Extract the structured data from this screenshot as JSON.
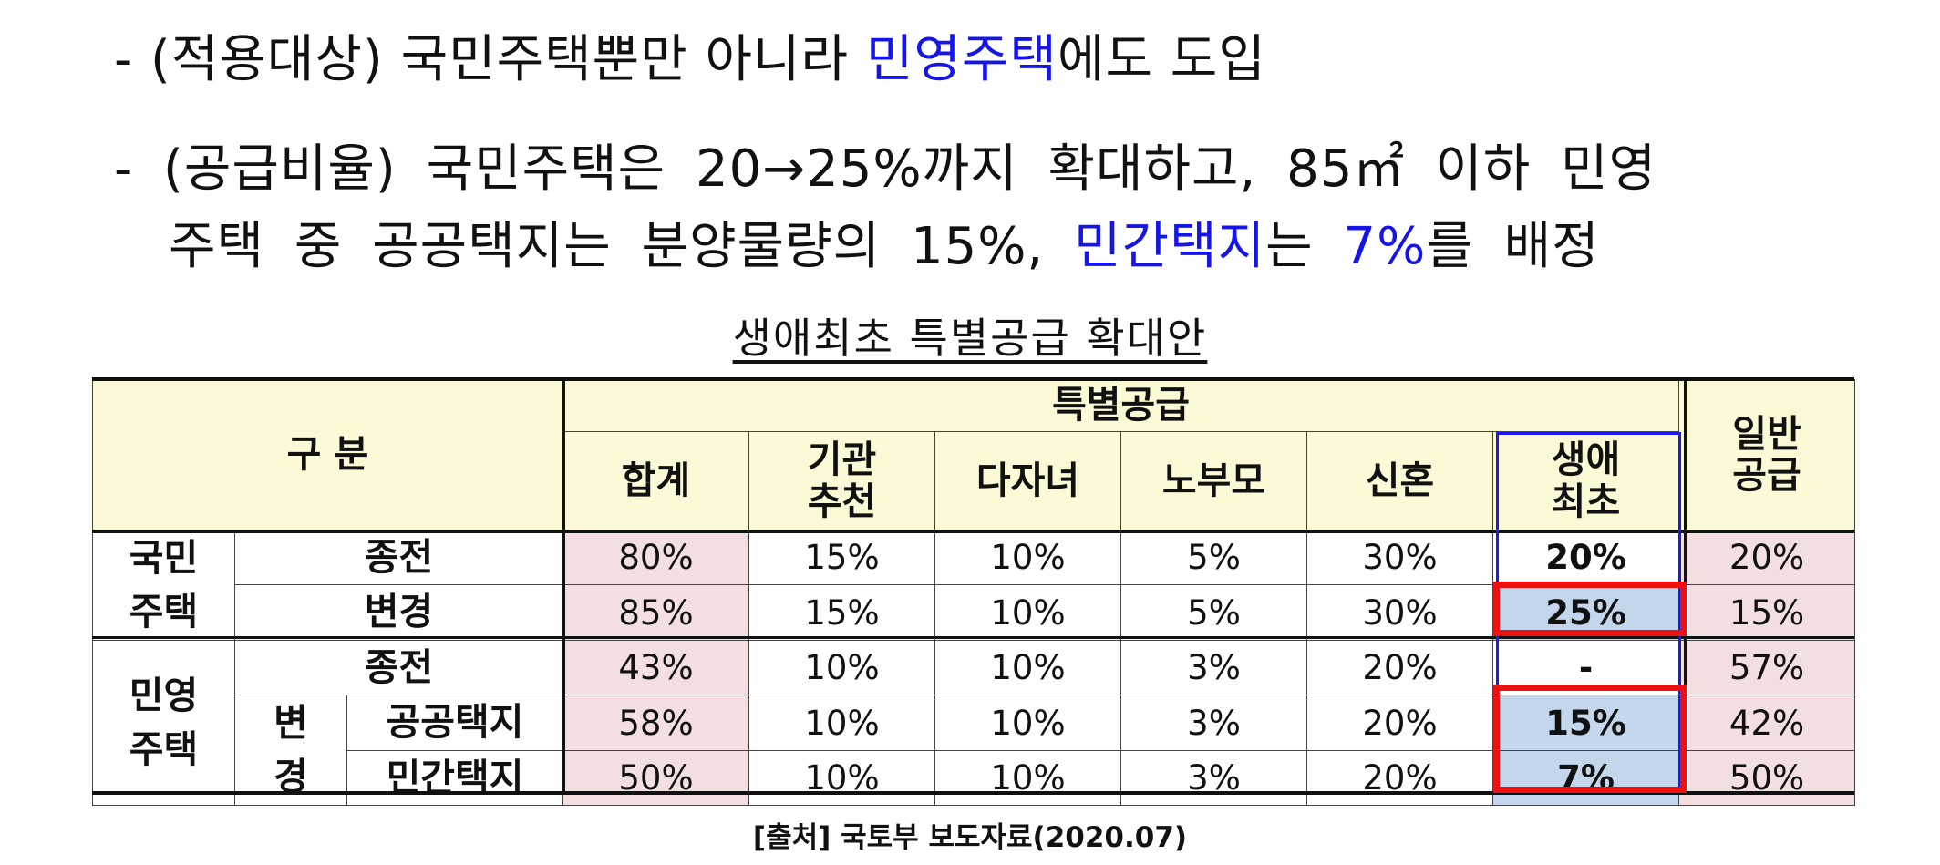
{
  "bullets": {
    "b1_pre": "- (적용대상) 국민주택뿐만 아니라 ",
    "b1_blue": "민영주택",
    "b1_post": "에도 도입",
    "b2_line1": "- (공급비율) 국민주택은 20→25%까지 확대하고, 85㎡ 이하 민영",
    "b2_line2_pre": "주택 중 공공택지는 분양물량의 15%, ",
    "b2_line2_blue1": "민간택지",
    "b2_line2_mid": "는 ",
    "b2_line2_blue2": "7%",
    "b2_line2_post": "를 배정"
  },
  "table": {
    "title": "생애최초 특별공급 확대안",
    "header_category": "구 분",
    "header_special": "특별공급",
    "header_general": "일반\n공급",
    "sub_headers": [
      "합계",
      "기관\n추천",
      "다자녀",
      "노부모",
      "신혼",
      "생애\n최초"
    ],
    "group_national": "국민\n주택",
    "group_private": "민영\n주택",
    "label_before": "종전",
    "label_after": "변경",
    "label_after_split": "변\n경",
    "label_public_land": "공공택지",
    "label_private_land": "민간택지",
    "rows": [
      [
        "80%",
        "15%",
        "10%",
        "5%",
        "30%",
        "20%",
        "20%"
      ],
      [
        "85%",
        "15%",
        "10%",
        "5%",
        "30%",
        "25%",
        "15%"
      ],
      [
        "43%",
        "10%",
        "10%",
        "3%",
        "20%",
        "-",
        "57%"
      ],
      [
        "58%",
        "10%",
        "10%",
        "3%",
        "20%",
        "15%",
        "42%"
      ],
      [
        "50%",
        "10%",
        "10%",
        "3%",
        "20%",
        "7%",
        "50%"
      ]
    ]
  },
  "source": "[출처] 국토부 보도자료(2020.07)",
  "colors": {
    "header_yellow": "#fcf9d7",
    "pink": "#f3dfe0",
    "light_blue": "#c3d6ec",
    "highlight_red": "#ee1111",
    "column_blue": "#1a1aee",
    "text_blue": "#1515e8"
  }
}
